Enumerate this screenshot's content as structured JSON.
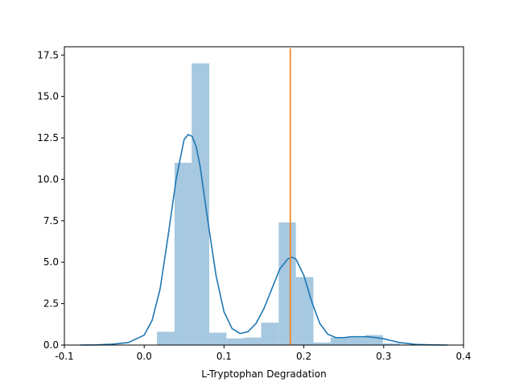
{
  "chart_data": {
    "type": "histogram",
    "title": "",
    "xlabel": "L-Tryptophan Degradation",
    "ylabel": "",
    "xlim": [
      -0.1,
      0.4
    ],
    "ylim": [
      0,
      18.0
    ],
    "grid": false,
    "legend": "none",
    "x_ticks": [
      {
        "value": -0.1,
        "label": "-0.1"
      },
      {
        "value": 0.0,
        "label": "0.0"
      },
      {
        "value": 0.1,
        "label": "0.1"
      },
      {
        "value": 0.2,
        "label": "0.2"
      },
      {
        "value": 0.3,
        "label": "0.3"
      },
      {
        "value": 0.4,
        "label": "0.4"
      }
    ],
    "y_ticks": [
      {
        "value": 0.0,
        "label": "0.0"
      },
      {
        "value": 2.5,
        "label": "2.5"
      },
      {
        "value": 5.0,
        "label": "5.0"
      },
      {
        "value": 7.5,
        "label": "7.5"
      },
      {
        "value": 10.0,
        "label": "10.0"
      },
      {
        "value": 12.5,
        "label": "12.5"
      },
      {
        "value": 15.0,
        "label": "15.0"
      },
      {
        "value": 17.5,
        "label": "17.5"
      }
    ],
    "histogram": {
      "color": "#a6c8e0",
      "bins": [
        {
          "x0": 0.016,
          "x1": 0.038,
          "height": 0.8
        },
        {
          "x0": 0.038,
          "x1": 0.0595,
          "height": 11.0
        },
        {
          "x0": 0.0595,
          "x1": 0.0815,
          "height": 17.0
        },
        {
          "x0": 0.0815,
          "x1": 0.103,
          "height": 0.75
        },
        {
          "x0": 0.103,
          "x1": 0.125,
          "height": 0.4
        },
        {
          "x0": 0.125,
          "x1": 0.1465,
          "height": 0.45
        },
        {
          "x0": 0.1465,
          "x1": 0.1685,
          "height": 1.35
        },
        {
          "x0": 0.1685,
          "x1": 0.19,
          "height": 7.4
        },
        {
          "x0": 0.19,
          "x1": 0.212,
          "height": 4.1
        },
        {
          "x0": 0.212,
          "x1": 0.2335,
          "height": 0.15
        },
        {
          "x0": 0.2335,
          "x1": 0.2555,
          "height": 0.45
        },
        {
          "x0": 0.2555,
          "x1": 0.277,
          "height": 0.45
        },
        {
          "x0": 0.277,
          "x1": 0.299,
          "height": 0.6
        },
        {
          "x0": 0.299,
          "x1": 0.321,
          "height": 0.1
        }
      ]
    },
    "kde": {
      "color": "#1f77b4",
      "x": [
        -0.08,
        -0.06,
        -0.04,
        -0.02,
        0.0,
        0.01,
        0.02,
        0.03,
        0.04,
        0.05,
        0.055,
        0.06,
        0.065,
        0.07,
        0.08,
        0.09,
        0.1,
        0.11,
        0.12,
        0.13,
        0.14,
        0.15,
        0.16,
        0.17,
        0.18,
        0.185,
        0.19,
        0.2,
        0.21,
        0.22,
        0.23,
        0.24,
        0.25,
        0.26,
        0.27,
        0.28,
        0.29,
        0.3,
        0.31,
        0.32,
        0.34,
        0.36,
        0.38
      ],
      "y": [
        0.0,
        0.01,
        0.05,
        0.15,
        0.6,
        1.5,
        3.4,
        6.6,
        10.0,
        12.4,
        12.7,
        12.6,
        12.0,
        10.8,
        7.4,
        4.2,
        2.0,
        1.0,
        0.7,
        0.8,
        1.3,
        2.2,
        3.4,
        4.6,
        5.2,
        5.3,
        5.2,
        4.2,
        2.6,
        1.3,
        0.65,
        0.45,
        0.45,
        0.5,
        0.5,
        0.5,
        0.45,
        0.38,
        0.26,
        0.15,
        0.04,
        0.01,
        0.0
      ]
    },
    "vline": {
      "x": 0.183,
      "y0": 0,
      "y1": 17.9,
      "color": "#ff7f0e"
    }
  }
}
